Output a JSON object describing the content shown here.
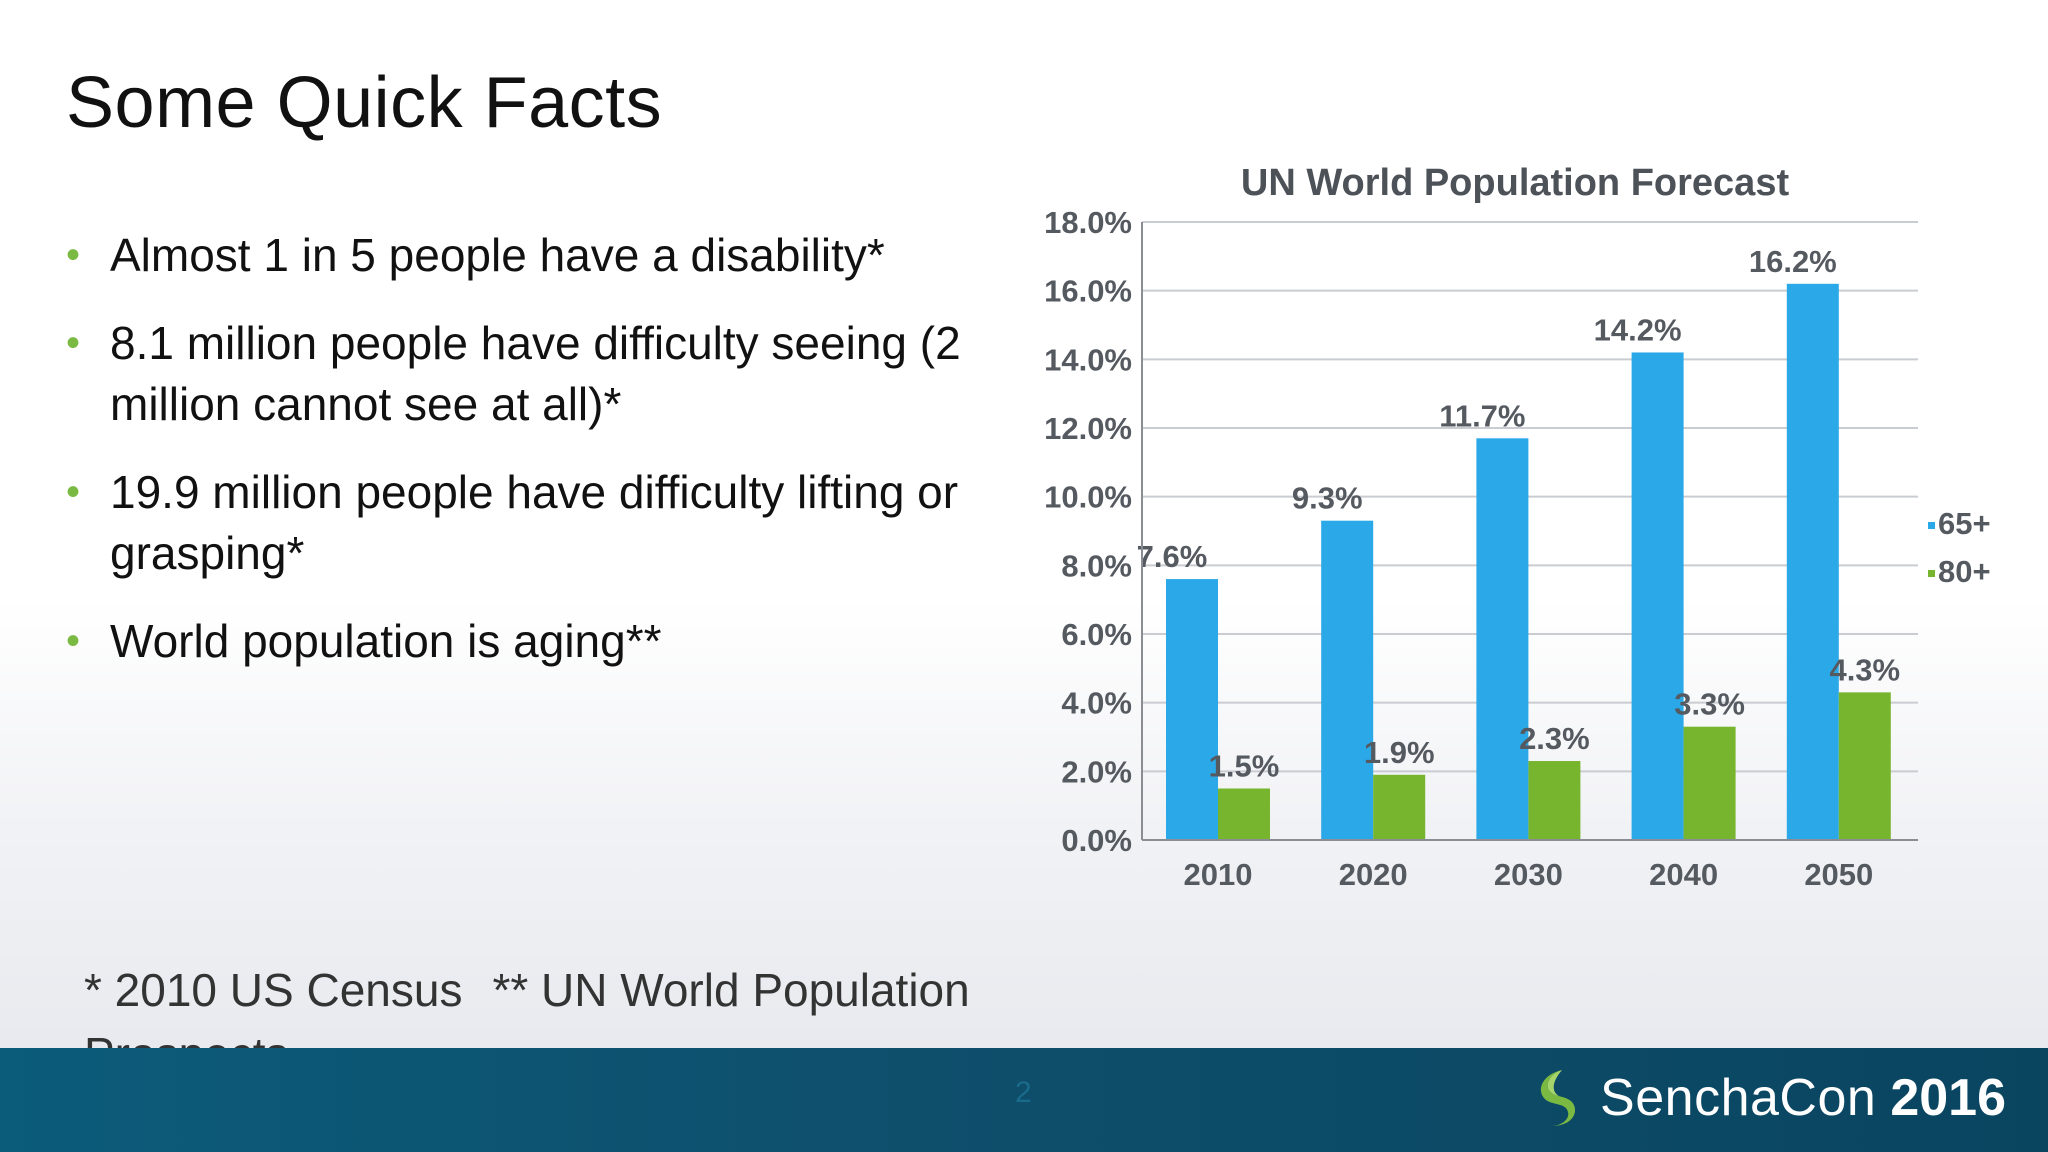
{
  "slide": {
    "title": "Some Quick Facts",
    "bullets": [
      "Almost 1 in 5 people have a disability*",
      "8.1 million people have difficulty seeing (2 million cannot see at all)*",
      "19.9 million people have difficulty lifting or grasping*",
      "World population is aging**"
    ],
    "footnote_1": "* 2010 US Census",
    "footnote_2": "** UN World Population Prospects",
    "page_number": "2"
  },
  "footer": {
    "brand_name": "SenchaCon",
    "brand_year": "2016",
    "bar_color": "#0e4f6c"
  },
  "chart_data": {
    "type": "bar",
    "title": "UN World Population Forecast",
    "categories": [
      "2010",
      "2020",
      "2030",
      "2040",
      "2050"
    ],
    "series": [
      {
        "name": "65+",
        "values": [
          7.6,
          9.3,
          11.7,
          14.2,
          16.2
        ],
        "labels": [
          "7.6%",
          "9.3%",
          "11.7%",
          "14.2%",
          "16.2%"
        ],
        "color": "#2aa8e8"
      },
      {
        "name": "80+",
        "values": [
          1.5,
          1.9,
          2.3,
          3.3,
          4.3
        ],
        "labels": [
          "1.5%",
          "1.9%",
          "2.3%",
          "3.3%",
          "4.3%"
        ],
        "color": "#77b52e"
      }
    ],
    "ylim": [
      0,
      18
    ],
    "yticks": [
      "0.0%",
      "2.0%",
      "4.0%",
      "6.0%",
      "8.0%",
      "10.0%",
      "12.0%",
      "14.0%",
      "16.0%",
      "18.0%"
    ],
    "ytick_values": [
      0,
      2,
      4,
      6,
      8,
      10,
      12,
      14,
      16,
      18
    ],
    "grid": true,
    "legend_position": "right"
  }
}
